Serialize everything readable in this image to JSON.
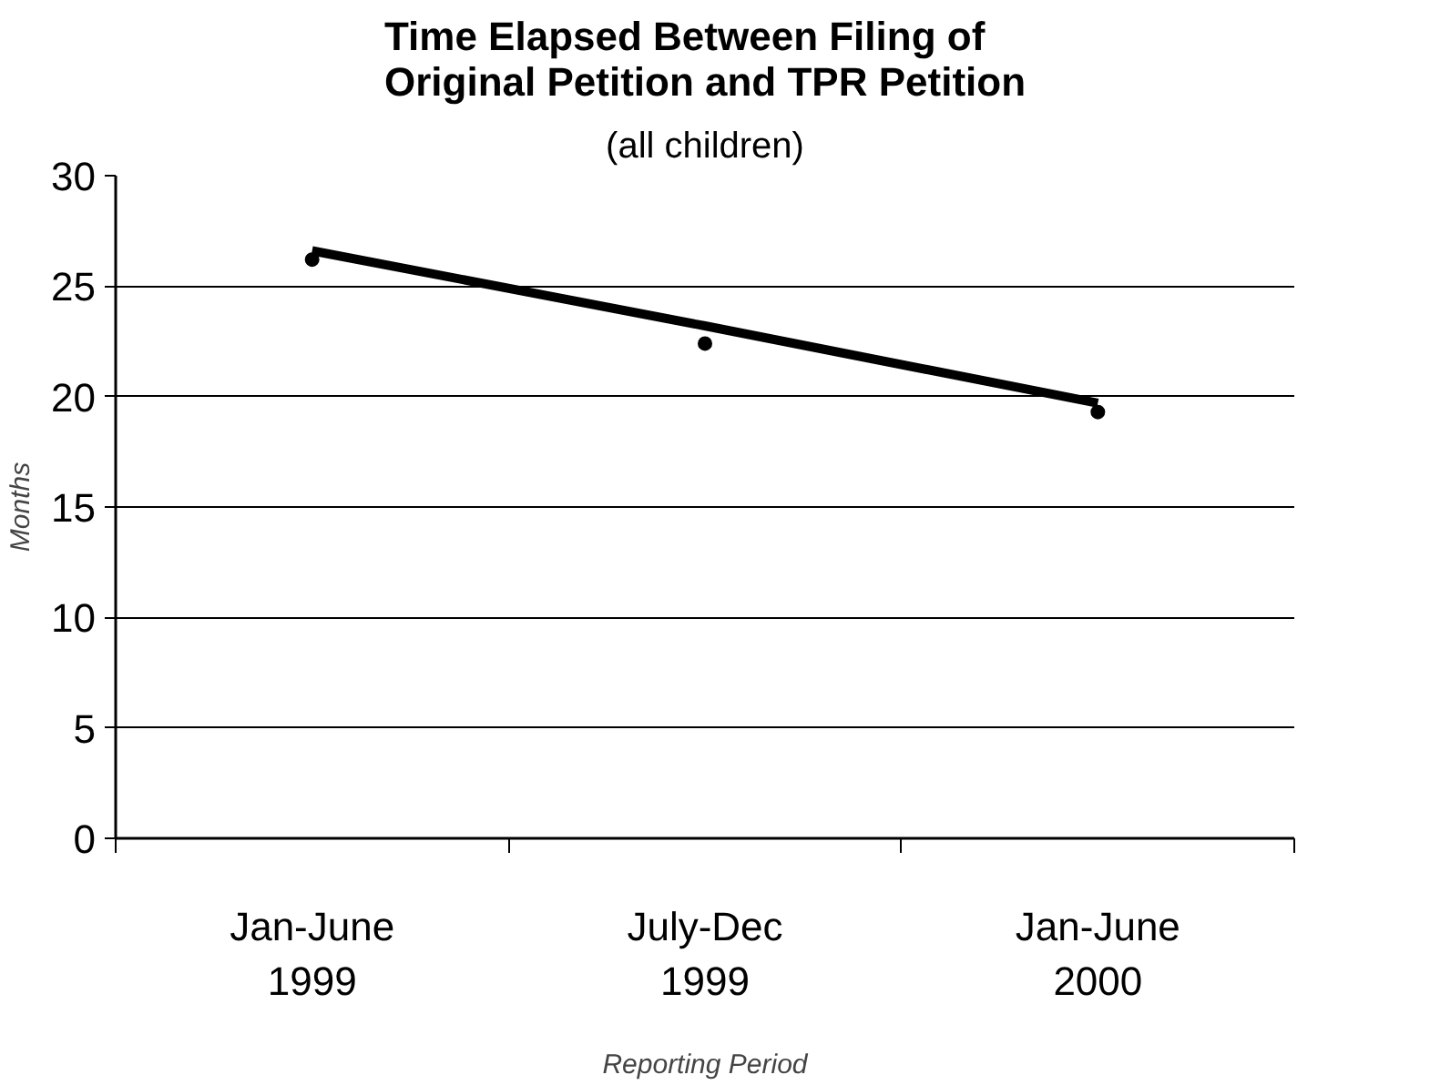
{
  "chart_data": {
    "type": "scatter",
    "title": "Time Elapsed Between Filing of\nOriginal Petition and TPR Petition",
    "subtitle": "(all children)",
    "xlabel": "Reporting Period",
    "ylabel": "Months",
    "categories": [
      "Jan-June\n1999",
      "July-Dec\n1999",
      "Jan-June\n2000"
    ],
    "series": [
      {
        "color": "#000000",
        "marker": "circle",
        "values": [
          26.2,
          22.4,
          19.3
        ]
      },
      {
        "type": "line",
        "color": "#000000",
        "marker": "none",
        "line_style": "solid",
        "values": [
          26.6,
          23.2,
          19.7
        ]
      }
    ],
    "ylim": [
      0,
      30
    ],
    "yticks": [
      0,
      5,
      10,
      15,
      20,
      25,
      30
    ],
    "grid": "y"
  }
}
